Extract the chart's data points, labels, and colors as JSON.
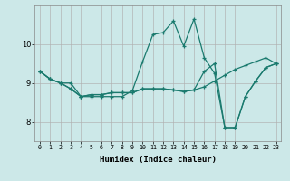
{
  "xlabel": "Humidex (Indice chaleur)",
  "bg_color": "#cce8e8",
  "line_color": "#1a7a6e",
  "grid_color_major": "#b0b0b0",
  "grid_color_minor": "#d8d8d8",
  "xlim": [
    -0.5,
    23.5
  ],
  "ylim": [
    7.5,
    11.0
  ],
  "yticks": [
    8,
    9,
    10
  ],
  "xticks": [
    0,
    1,
    2,
    3,
    4,
    5,
    6,
    7,
    8,
    9,
    10,
    11,
    12,
    13,
    14,
    15,
    16,
    17,
    18,
    19,
    20,
    21,
    22,
    23
  ],
  "series": [
    [
      9.3,
      9.1,
      9.0,
      9.0,
      8.65,
      8.65,
      8.65,
      8.65,
      8.65,
      8.8,
      9.55,
      10.25,
      10.3,
      10.6,
      9.95,
      10.65,
      9.65,
      9.25,
      7.85,
      7.85,
      8.65,
      9.05,
      9.4,
      9.5
    ],
    [
      9.3,
      9.1,
      9.0,
      8.85,
      8.65,
      8.7,
      8.7,
      8.75,
      8.75,
      8.75,
      8.85,
      8.85,
      8.85,
      8.82,
      8.78,
      8.82,
      8.9,
      9.05,
      9.2,
      9.35,
      9.45,
      9.55,
      9.65,
      9.5
    ],
    [
      9.3,
      9.1,
      9.0,
      8.85,
      8.65,
      8.7,
      8.7,
      8.75,
      8.75,
      8.75,
      8.85,
      8.85,
      8.85,
      8.82,
      8.78,
      8.82,
      9.3,
      9.5,
      7.85,
      7.85,
      8.65,
      9.05,
      9.4,
      9.5
    ]
  ]
}
